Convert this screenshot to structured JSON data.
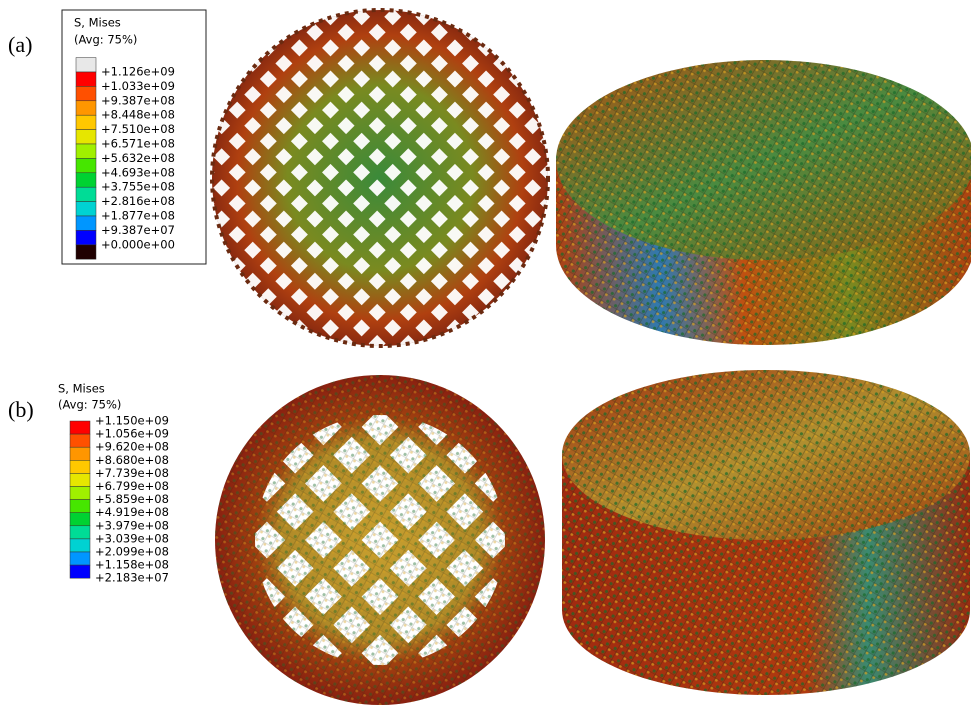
{
  "panels": [
    {
      "label": "(a)",
      "legend": {
        "title": "S, Mises",
        "subtitle": "(Avg: 75%)",
        "labels": [
          "+1.126e+09",
          "+1.033e+09",
          "+9.387e+08",
          "+8.448e+08",
          "+7.510e+08",
          "+6.571e+08",
          "+5.632e+08",
          "+4.693e+08",
          "+3.755e+08",
          "+2.816e+08",
          "+1.877e+08",
          "+9.387e+07",
          "+0.000e+00"
        ]
      }
    },
    {
      "label": "(b)",
      "legend": {
        "title": "S, Mises",
        "subtitle": "(Avg: 75%)",
        "labels": [
          "+1.150e+09",
          "+1.056e+09",
          "+9.620e+08",
          "+8.680e+08",
          "+7.739e+08",
          "+6.799e+08",
          "+5.859e+08",
          "+4.919e+08",
          "+3.979e+08",
          "+3.039e+08",
          "+2.099e+08",
          "+1.158e+08",
          "+2.183e+07"
        ]
      }
    }
  ]
}
